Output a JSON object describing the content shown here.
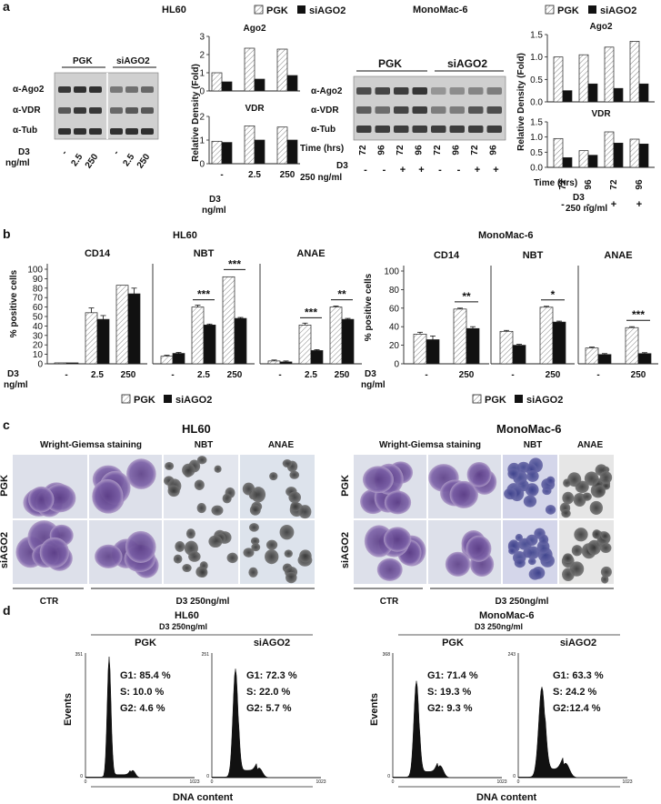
{
  "legend": {
    "pgk": "PGK",
    "si": "siAGO2"
  },
  "panel_a": {
    "letter": "a",
    "hl60": {
      "title": "HL60",
      "groups": [
        "PGK",
        "siAGO2"
      ],
      "bands": [
        "α-Ago2",
        "α-VDR",
        "α-Tub"
      ],
      "d3_label": "D3",
      "unit_label": "ng/ml",
      "lanes": [
        "-",
        "2.5",
        "250",
        "-",
        "2.5",
        "250"
      ],
      "ylabel": "Relative Density (Fold)",
      "x_label": "D3",
      "x_unit": "ng/ml"
    },
    "mm6": {
      "title": "MonoMac-6",
      "groups": [
        "PGK",
        "siAGO2"
      ],
      "bands": [
        "α-Ago2",
        "α-VDR",
        "α-Tub"
      ],
      "time_label": "Time (hrs)",
      "times": [
        "72",
        "96",
        "72",
        "96",
        "72",
        "96",
        "72",
        "96"
      ],
      "d3_label": "D3",
      "d3_unit": "250 ng/ml",
      "treat": [
        "-",
        "-",
        "+",
        "+",
        "-",
        "-",
        "+",
        "+"
      ],
      "ylabel": "Relative Density (Fold)",
      "chart_times": [
        "72",
        "96",
        "72",
        "96"
      ],
      "chart_treat": [
        "-",
        "-",
        "+",
        "+"
      ]
    }
  },
  "panel_b": {
    "letter": "b",
    "hl60_title": "HL60",
    "mm6_title": "MonoMac-6",
    "ylabel": "% positive cells",
    "d3_label": "D3",
    "unit_label": "ng/ml"
  },
  "panel_c": {
    "letter": "c",
    "hl60_title": "HL60",
    "mm6_title": "MonoMac-6",
    "cols": [
      "Wright-Giemsa staining",
      "NBT",
      "ANAE"
    ],
    "rows": [
      "PGK",
      "siAGO2"
    ],
    "ctr": "CTR",
    "d3": "D3 250ng/ml"
  },
  "panel_d": {
    "letter": "d",
    "hl60_title": "HL60",
    "mm6_title": "MonoMac-6",
    "subtitle": "D3 250ng/ml",
    "ylabel": "Events",
    "xlabel": "DNA content",
    "histograms": [
      {
        "label": "PGK",
        "ymax": "351",
        "xmax": "1023",
        "xmin": "0",
        "ymin": "0",
        "g1": "G1: 85.4 %",
        "s": "S:    10.0 %",
        "g2": "G2: 4.6 %"
      },
      {
        "label": "siAGO2",
        "ymax": "251",
        "xmax": "1023",
        "xmin": "0",
        "ymin": "0",
        "g1": "G1: 72.3 %",
        "s": "S:    22.0 %",
        "g2": "G2: 5.7 %"
      },
      {
        "label": "PGK",
        "ymax": "368",
        "xmax": "1023",
        "xmin": "0",
        "ymin": "0",
        "g1": "G1: 71.4 %",
        "s": "S:   19.3 %",
        "g2": "G2: 9.3 %"
      },
      {
        "label": "siAGO2",
        "ymax": "243",
        "xmax": "1023",
        "xmin": "0",
        "ymin": "0",
        "g1": "G1: 63.3 %",
        "s": "S:   24.2 %",
        "g2": "G2:12.4 %"
      }
    ]
  },
  "chart_data": [
    {
      "type": "bar",
      "title": "Ago2",
      "categories": [
        "-",
        "2.5",
        "250"
      ],
      "ylim": [
        0,
        3
      ],
      "yticks": [
        0,
        1,
        2,
        3
      ],
      "series": [
        {
          "name": "PGK",
          "values": [
            1.0,
            2.35,
            2.3
          ]
        },
        {
          "name": "siAGO2",
          "values": [
            0.5,
            0.65,
            0.85
          ]
        }
      ]
    },
    {
      "type": "bar",
      "title": "VDR",
      "categories": [
        "-",
        "2.5",
        "250"
      ],
      "ylim": [
        0,
        2
      ],
      "yticks": [
        0,
        1,
        2
      ],
      "series": [
        {
          "name": "PGK",
          "values": [
            0.95,
            1.6,
            1.55
          ]
        },
        {
          "name": "siAGO2",
          "values": [
            0.9,
            1.0,
            1.0
          ]
        }
      ]
    },
    {
      "type": "bar",
      "title": "Ago2",
      "categories": [
        "72",
        "96",
        "72",
        "96"
      ],
      "ylim": [
        0,
        1.5
      ],
      "yticks": [
        0,
        0.5,
        1.0,
        1.5
      ],
      "series": [
        {
          "name": "PGK",
          "values": [
            1.0,
            1.05,
            1.22,
            1.35
          ]
        },
        {
          "name": "siAGO2",
          "values": [
            0.25,
            0.4,
            0.3,
            0.4
          ]
        }
      ]
    },
    {
      "type": "bar",
      "title": "VDR",
      "categories": [
        "72",
        "96",
        "72",
        "96"
      ],
      "ylim": [
        0,
        1.5
      ],
      "yticks": [
        0,
        0.5,
        1.0,
        1.5
      ],
      "series": [
        {
          "name": "PGK",
          "values": [
            0.95,
            0.55,
            1.17,
            0.93
          ]
        },
        {
          "name": "siAGO2",
          "values": [
            0.32,
            0.4,
            0.8,
            0.77
          ]
        }
      ]
    },
    {
      "type": "bar",
      "title": "CD14",
      "categories": [
        "-",
        "2.5",
        "250"
      ],
      "ylim": [
        0,
        100
      ],
      "yticks": [
        0,
        10,
        20,
        30,
        40,
        50,
        60,
        70,
        80,
        90,
        100
      ],
      "series": [
        {
          "name": "PGK",
          "values": [
            1,
            54,
            83
          ]
        },
        {
          "name": "siAGO2",
          "values": [
            1,
            47,
            74
          ]
        }
      ]
    },
    {
      "type": "bar",
      "title": "NBT",
      "categories": [
        "-",
        "2.5",
        "250"
      ],
      "ylim": [
        0,
        100
      ],
      "series": [
        {
          "name": "PGK",
          "values": [
            8,
            60,
            92
          ]
        },
        {
          "name": "siAGO2",
          "values": [
            11,
            41,
            48
          ]
        }
      ],
      "annotations": [
        "***",
        "***"
      ]
    },
    {
      "type": "bar",
      "title": "ANAE",
      "categories": [
        "-",
        "2.5",
        "250"
      ],
      "ylim": [
        0,
        100
      ],
      "series": [
        {
          "name": "PGK",
          "values": [
            3,
            41,
            60
          ]
        },
        {
          "name": "siAGO2",
          "values": [
            2,
            14,
            47
          ]
        }
      ],
      "annotations": [
        "***",
        "**"
      ]
    },
    {
      "type": "bar",
      "title": "CD14",
      "categories": [
        "-",
        "250"
      ],
      "ylim": [
        0,
        100
      ],
      "yticks": [
        0,
        20,
        40,
        60,
        80,
        100
      ],
      "series": [
        {
          "name": "PGK",
          "values": [
            32,
            59
          ]
        },
        {
          "name": "siAGO2",
          "values": [
            26,
            38
          ]
        }
      ],
      "annotations": [
        "**"
      ]
    },
    {
      "type": "bar",
      "title": "NBT",
      "categories": [
        "-",
        "250"
      ],
      "ylim": [
        0,
        100
      ],
      "series": [
        {
          "name": "PGK",
          "values": [
            35,
            61
          ]
        },
        {
          "name": "siAGO2",
          "values": [
            20,
            45
          ]
        }
      ],
      "annotations": [
        "*"
      ]
    },
    {
      "type": "bar",
      "title": "ANAE",
      "categories": [
        "-",
        "250"
      ],
      "ylim": [
        0,
        100
      ],
      "series": [
        {
          "name": "PGK",
          "values": [
            17,
            39
          ]
        },
        {
          "name": "siAGO2",
          "values": [
            10,
            11
          ]
        }
      ],
      "annotations": [
        "***"
      ]
    }
  ]
}
